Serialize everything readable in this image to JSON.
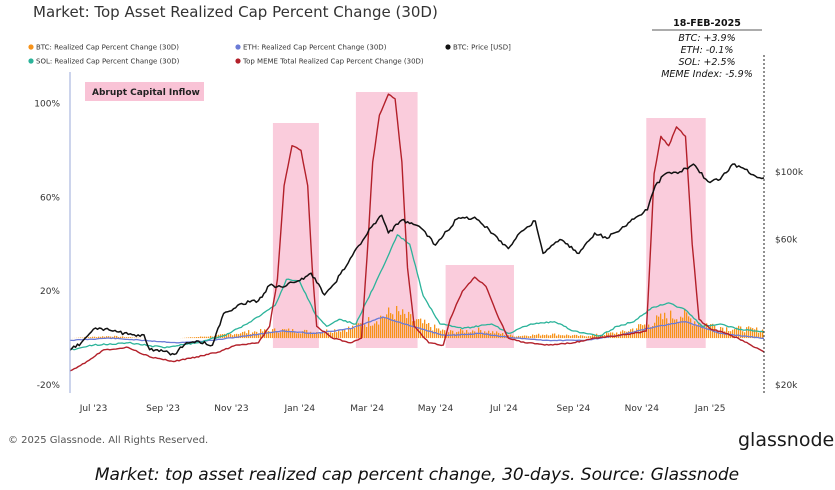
{
  "chart_data": {
    "type": "line",
    "title": "Market: Top Asset Realized Cap Percent Change (30D)",
    "legend": [
      {
        "name": "BTC: Realized Cap Percent Change (30D)",
        "color": "#f7931a"
      },
      {
        "name": "ETH: Realized Cap Percent Change (30D)",
        "color": "#6b7bd6"
      },
      {
        "name": "BTC: Price [USD]",
        "color": "#111111"
      },
      {
        "name": "SOL: Realized Cap Percent Change (30D)",
        "color": "#2bb39a"
      },
      {
        "name": "Top MEME Total Realized Cap Percent Change (30D)",
        "color": "#b3202a"
      }
    ],
    "legend_placement": "top-left",
    "x_ticks": [
      "Jul '23",
      "Sep '23",
      "Nov '23",
      "Jan '24",
      "Mar '24",
      "May '24",
      "Jul '24",
      "Sep '24",
      "Nov '24",
      "Jan '25"
    ],
    "y_left_ticks": [
      "100%",
      "60%",
      "20%",
      "-20%"
    ],
    "y_left_range": [
      -20,
      110
    ],
    "y_right_ticks": [
      "$100k",
      "$60k",
      "$20k"
    ],
    "y_right_scale": "log",
    "y_right_range": [
      20000,
      200000
    ],
    "x_range": [
      "2023-06-10",
      "2025-02-18"
    ],
    "grid": false,
    "tooltip": {
      "date": "18-FEB-2025",
      "lines": [
        "BTC: +3.9%",
        "ETH: -0.1%",
        "SOL: +2.5%",
        "MEME Index: -5.9%"
      ]
    },
    "annotation": {
      "label": "Abrupt Capital Inflow",
      "highlight_ranges": [
        [
          "2023-12-08",
          "2024-01-18"
        ],
        [
          "2024-02-20",
          "2024-04-15"
        ],
        [
          "2024-05-10",
          "2024-07-10"
        ],
        [
          "2024-11-05",
          "2024-12-28"
        ]
      ]
    },
    "series": [
      {
        "name": "BTC: Price [USD]",
        "axis": "right",
        "points": [
          [
            "2023-06-10",
            26000
          ],
          [
            "2023-06-20",
            27500
          ],
          [
            "2023-07-01",
            30500
          ],
          [
            "2023-07-15",
            30300
          ],
          [
            "2023-08-01",
            29300
          ],
          [
            "2023-08-15",
            29200
          ],
          [
            "2023-08-20",
            26100
          ],
          [
            "2023-09-01",
            25800
          ],
          [
            "2023-09-11",
            25200
          ],
          [
            "2023-09-20",
            27100
          ],
          [
            "2023-10-01",
            27900
          ],
          [
            "2023-10-15",
            27000
          ],
          [
            "2023-10-25",
            34300
          ],
          [
            "2023-11-10",
            37000
          ],
          [
            "2023-11-25",
            37800
          ],
          [
            "2023-12-05",
            42500
          ],
          [
            "2023-12-15",
            42000
          ],
          [
            "2024-01-01",
            44000
          ],
          [
            "2024-01-11",
            46500
          ],
          [
            "2024-01-23",
            39500
          ],
          [
            "2024-02-01",
            43000
          ],
          [
            "2024-02-15",
            52000
          ],
          [
            "2024-02-28",
            61000
          ],
          [
            "2024-03-05",
            66000
          ],
          [
            "2024-03-14",
            72000
          ],
          [
            "2024-03-20",
            63000
          ],
          [
            "2024-04-01",
            69500
          ],
          [
            "2024-04-13",
            67000
          ],
          [
            "2024-04-20",
            64500
          ],
          [
            "2024-05-01",
            57500
          ],
          [
            "2024-05-20",
            70000
          ],
          [
            "2024-06-05",
            71000
          ],
          [
            "2024-06-25",
            61000
          ],
          [
            "2024-07-05",
            56000
          ],
          [
            "2024-07-15",
            63000
          ],
          [
            "2024-07-29",
            69000
          ],
          [
            "2024-08-05",
            54000
          ],
          [
            "2024-08-20",
            60000
          ],
          [
            "2024-09-06",
            54000
          ],
          [
            "2024-09-20",
            63000
          ],
          [
            "2024-10-01",
            60500
          ],
          [
            "2024-10-20",
            68000
          ],
          [
            "2024-10-30",
            72000
          ],
          [
            "2024-11-06",
            75000
          ],
          [
            "2024-11-13",
            90000
          ],
          [
            "2024-11-22",
            98500
          ],
          [
            "2024-12-05",
            100000
          ],
          [
            "2024-12-17",
            106000
          ],
          [
            "2024-12-30",
            93000
          ],
          [
            "2025-01-10",
            94500
          ],
          [
            "2025-01-21",
            106000
          ],
          [
            "2025-02-01",
            102000
          ],
          [
            "2025-02-10",
            97000
          ],
          [
            "2025-02-18",
            95500
          ]
        ]
      },
      {
        "name": "Top MEME Total Realized Cap Percent Change (30D)",
        "axis": "left",
        "points": [
          [
            "2023-06-10",
            -14
          ],
          [
            "2023-06-25",
            -10
          ],
          [
            "2023-07-10",
            -5
          ],
          [
            "2023-08-01",
            -4
          ],
          [
            "2023-08-20",
            -8
          ],
          [
            "2023-09-10",
            -10
          ],
          [
            "2023-10-01",
            -8
          ],
          [
            "2023-10-20",
            -6
          ],
          [
            "2023-11-05",
            -3
          ],
          [
            "2023-11-25",
            -2
          ],
          [
            "2023-12-05",
            5
          ],
          [
            "2023-12-12",
            25
          ],
          [
            "2023-12-18",
            65
          ],
          [
            "2023-12-25",
            82
          ],
          [
            "2024-01-02",
            80
          ],
          [
            "2024-01-08",
            65
          ],
          [
            "2024-01-12",
            30
          ],
          [
            "2024-01-16",
            5
          ],
          [
            "2024-01-30",
            0
          ],
          [
            "2024-02-15",
            -2
          ],
          [
            "2024-02-25",
            0
          ],
          [
            "2024-03-01",
            35
          ],
          [
            "2024-03-06",
            75
          ],
          [
            "2024-03-12",
            95
          ],
          [
            "2024-03-20",
            104
          ],
          [
            "2024-03-26",
            102
          ],
          [
            "2024-04-01",
            75
          ],
          [
            "2024-04-06",
            30
          ],
          [
            "2024-04-12",
            5
          ],
          [
            "2024-04-25",
            -2
          ],
          [
            "2024-05-08",
            -3
          ],
          [
            "2024-05-14",
            8
          ],
          [
            "2024-05-25",
            20
          ],
          [
            "2024-06-05",
            26
          ],
          [
            "2024-06-15",
            22
          ],
          [
            "2024-06-25",
            10
          ],
          [
            "2024-07-05",
            0
          ],
          [
            "2024-07-20",
            -2
          ],
          [
            "2024-08-10",
            -3
          ],
          [
            "2024-09-01",
            -2
          ],
          [
            "2024-09-20",
            0
          ],
          [
            "2024-10-10",
            1
          ],
          [
            "2024-10-25",
            2
          ],
          [
            "2024-11-05",
            3
          ],
          [
            "2024-11-08",
            30
          ],
          [
            "2024-11-12",
            70
          ],
          [
            "2024-11-18",
            86
          ],
          [
            "2024-11-25",
            82
          ],
          [
            "2024-12-02",
            90
          ],
          [
            "2024-12-10",
            86
          ],
          [
            "2024-12-16",
            40
          ],
          [
            "2024-12-22",
            8
          ],
          [
            "2025-01-01",
            4
          ],
          [
            "2025-01-15",
            2
          ],
          [
            "2025-01-30",
            -1
          ],
          [
            "2025-02-10",
            -4
          ],
          [
            "2025-02-18",
            -5.9
          ]
        ]
      },
      {
        "name": "SOL: Realized Cap Percent Change (30D)",
        "axis": "left",
        "points": [
          [
            "2023-06-10",
            -5
          ],
          [
            "2023-07-01",
            -3
          ],
          [
            "2023-08-01",
            -2
          ],
          [
            "2023-09-01",
            -4
          ],
          [
            "2023-10-01",
            -2
          ],
          [
            "2023-10-25",
            1
          ],
          [
            "2023-11-15",
            6
          ],
          [
            "2023-12-10",
            14
          ],
          [
            "2023-12-20",
            25
          ],
          [
            "2024-01-01",
            24
          ],
          [
            "2024-01-15",
            10
          ],
          [
            "2024-01-25",
            5
          ],
          [
            "2024-02-05",
            8
          ],
          [
            "2024-02-20",
            6
          ],
          [
            "2024-03-01",
            16
          ],
          [
            "2024-03-15",
            30
          ],
          [
            "2024-03-28",
            44
          ],
          [
            "2024-04-08",
            40
          ],
          [
            "2024-04-20",
            18
          ],
          [
            "2024-05-05",
            6
          ],
          [
            "2024-05-25",
            4
          ],
          [
            "2024-06-20",
            6
          ],
          [
            "2024-07-05",
            2
          ],
          [
            "2024-07-25",
            6
          ],
          [
            "2024-08-15",
            7
          ],
          [
            "2024-09-01",
            3
          ],
          [
            "2024-09-25",
            1
          ],
          [
            "2024-10-10",
            5
          ],
          [
            "2024-10-25",
            7
          ],
          [
            "2024-11-10",
            13
          ],
          [
            "2024-11-25",
            15
          ],
          [
            "2024-12-10",
            12
          ],
          [
            "2024-12-25",
            5
          ],
          [
            "2025-01-10",
            6
          ],
          [
            "2025-01-25",
            4
          ],
          [
            "2025-02-10",
            3
          ],
          [
            "2025-02-18",
            2.5
          ]
        ]
      },
      {
        "name": "ETH: Realized Cap Percent Change (30D)",
        "axis": "left",
        "points": [
          [
            "2023-06-10",
            -1
          ],
          [
            "2023-07-15",
            0
          ],
          [
            "2023-08-15",
            -1
          ],
          [
            "2023-09-15",
            -2
          ],
          [
            "2023-10-15",
            -1
          ],
          [
            "2023-11-15",
            1
          ],
          [
            "2023-12-15",
            3
          ],
          [
            "2024-01-15",
            2
          ],
          [
            "2024-02-15",
            4
          ],
          [
            "2024-03-15",
            9
          ],
          [
            "2024-04-10",
            5
          ],
          [
            "2024-05-10",
            1
          ],
          [
            "2024-06-10",
            2
          ],
          [
            "2024-07-10",
            0
          ],
          [
            "2024-08-10",
            -1
          ],
          [
            "2024-09-10",
            -1
          ],
          [
            "2024-10-10",
            1
          ],
          [
            "2024-11-15",
            5
          ],
          [
            "2024-12-10",
            7
          ],
          [
            "2025-01-10",
            2
          ],
          [
            "2025-02-18",
            -0.1
          ]
        ]
      },
      {
        "name": "BTC: Realized Cap Percent Change (30D)",
        "axis": "left",
        "type": "bar",
        "points": [
          [
            "2023-06-10",
            0
          ],
          [
            "2023-07-15",
            1
          ],
          [
            "2023-08-15",
            0
          ],
          [
            "2023-09-15",
            0
          ],
          [
            "2023-10-15",
            1
          ],
          [
            "2023-11-15",
            3
          ],
          [
            "2023-12-15",
            4
          ],
          [
            "2024-01-15",
            3
          ],
          [
            "2024-02-15",
            5
          ],
          [
            "2024-03-10",
            10
          ],
          [
            "2024-03-25",
            13
          ],
          [
            "2024-04-10",
            9
          ],
          [
            "2024-05-10",
            3
          ],
          [
            "2024-06-10",
            4
          ],
          [
            "2024-07-10",
            1
          ],
          [
            "2024-08-10",
            2
          ],
          [
            "2024-09-10",
            1
          ],
          [
            "2024-10-15",
            3
          ],
          [
            "2024-11-20",
            10
          ],
          [
            "2024-12-05",
            12
          ],
          [
            "2024-12-20",
            8
          ],
          [
            "2025-01-15",
            5
          ],
          [
            "2025-02-18",
            3.9
          ]
        ]
      }
    ]
  },
  "footer": {
    "copyright": "© 2025 Glassnode. All Rights Reserved.",
    "brand": "glassnode"
  },
  "caption": "Market: top asset realized cap percent change, 30-days. Source: Glassnode"
}
